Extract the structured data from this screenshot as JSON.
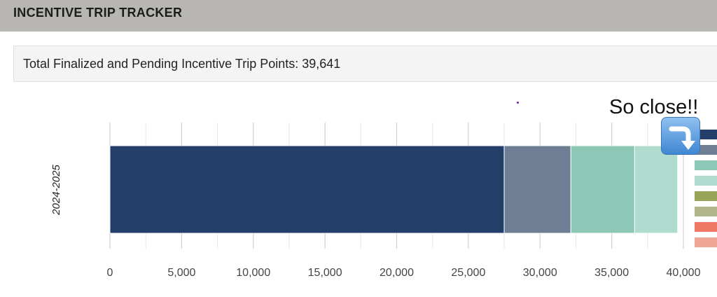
{
  "header": {
    "title": "INCENTIVE TRIP TRACKER"
  },
  "summary": {
    "text": "Total Finalized and Pending Incentive Trip Points: 39,641"
  },
  "annotation": {
    "text": "So close!!",
    "icon": "arrow-curving-down-icon"
  },
  "chart_data": {
    "type": "bar",
    "orientation": "horizontal",
    "stacked": true,
    "categories": [
      "2024-2025"
    ],
    "series": [
      {
        "values": [
          27500
        ],
        "color": "#233e68"
      },
      {
        "values": [
          4650
        ],
        "color": "#6e7f95"
      },
      {
        "values": [
          4450
        ],
        "color": "#8dc7b6"
      },
      {
        "values": [
          3000
        ],
        "color": "#b0dccf"
      }
    ],
    "legend_swatch_colors": [
      "#233e68",
      "#6e7f95",
      "#8dc7b6",
      "#b0dccf",
      "#98a356",
      "#b1b58b",
      "#ee7a65",
      "#f0a696"
    ],
    "x_ticks": [
      "0",
      "5,000",
      "10,000",
      "15,000",
      "20,000",
      "25,000",
      "30,000",
      "35,000",
      "40,000"
    ],
    "xlim": [
      0,
      40000
    ],
    "grid": true,
    "legend_position": "right"
  }
}
